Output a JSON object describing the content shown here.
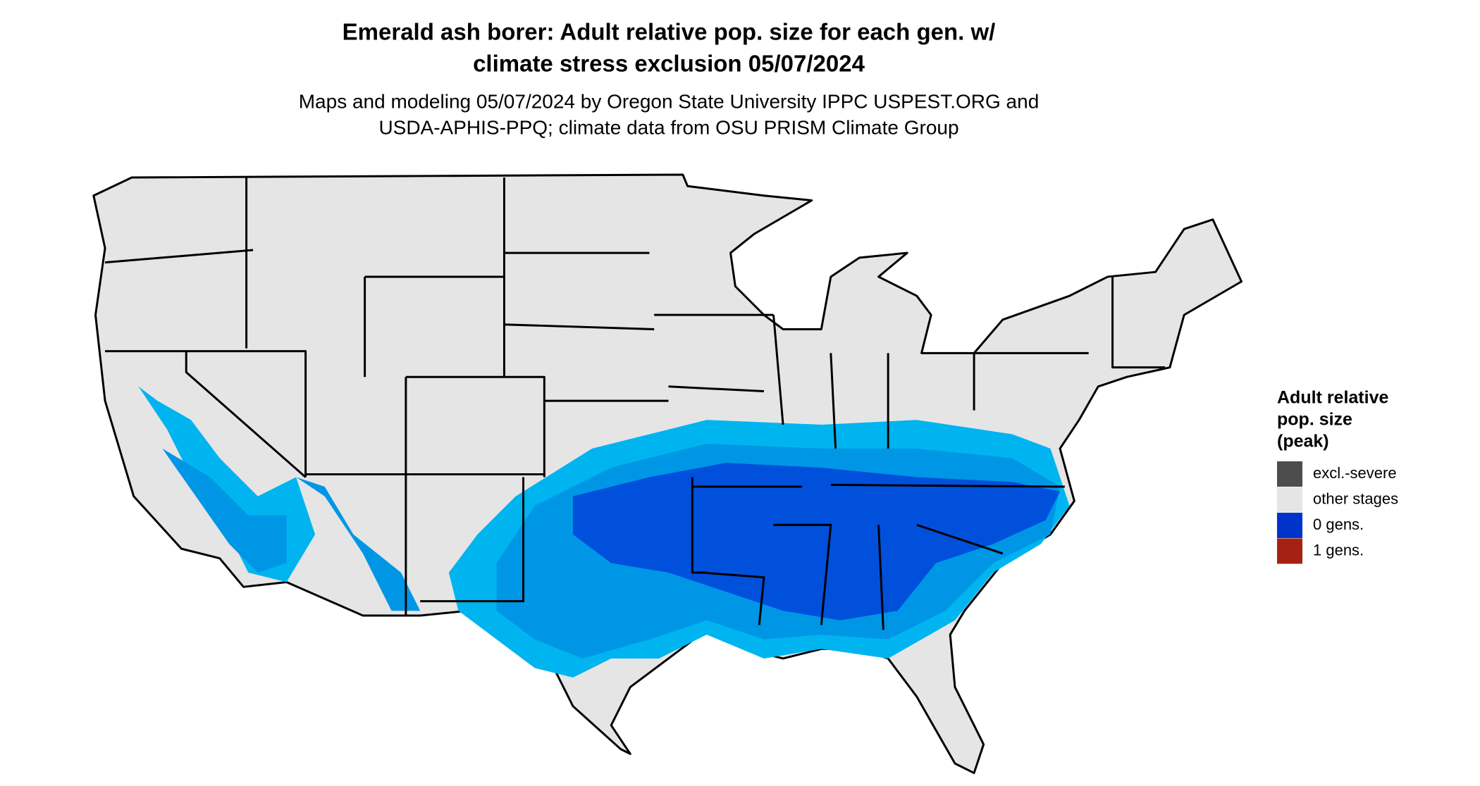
{
  "map": {
    "title": [
      "Emerald ash borer: Adult relative pop. size for each gen. w/",
      "climate stress exclusion 05/07/2024"
    ],
    "subtitle": [
      "Maps and modeling 05/07/2024 by Oregon State University IPPC USPEST.ORG and",
      "USDA-APHIS-PPQ; climate data from OSU PRISM Climate Group"
    ],
    "legend": {
      "title": [
        "Adult relative",
        "pop. size",
        "(peak)"
      ],
      "items": [
        {
          "label": "excl.-severe",
          "color": "#4d4d4d"
        },
        {
          "label": "other stages",
          "color": "#e5e5e5"
        },
        {
          "label": "0 gens.",
          "color": "#0033cc"
        },
        {
          "label": "1 gens.",
          "color": "#a52213"
        }
      ]
    }
  }
}
